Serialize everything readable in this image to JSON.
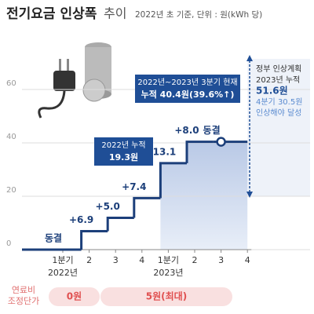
{
  "chart_data": {
    "type": "step",
    "title": "전기요금 인상폭",
    "title_suffix": "추이",
    "subtitle": "2022년 초 기준, 단위 : 원(kWh 당)",
    "categories": [
      "1분기",
      "2",
      "3",
      "4",
      "1분기",
      "2",
      "3",
      "4"
    ],
    "years": [
      "2022년",
      "2023년"
    ],
    "values": [
      0,
      6.9,
      5.0,
      7.4,
      13.1,
      8.0,
      0,
      null
    ],
    "value_labels": [
      "동결",
      "+6.9",
      "+5.0",
      "+7.4",
      "+13.1",
      "+8.0",
      "동결",
      null
    ],
    "color": "#1c3f7a",
    "ylim": [
      0,
      60
    ],
    "yticks": [
      0,
      20,
      40,
      60
    ],
    "grid": true,
    "callouts": [
      [
        "2022년 누적",
        "19.3원"
      ],
      [
        "2022년~2023년 3분기 현재",
        "누적 40.4원(39.6%↑)"
      ]
    ],
    "plan": [
      "정부 인상계획",
      "2023년 누적",
      "51.6원",
      "4분기 30.5원",
      "인상해야 달성"
    ],
    "fuel_label": [
      "연료비",
      "조정단가"
    ],
    "fuel_values": [
      "0원",
      "5원(최대)"
    ]
  }
}
